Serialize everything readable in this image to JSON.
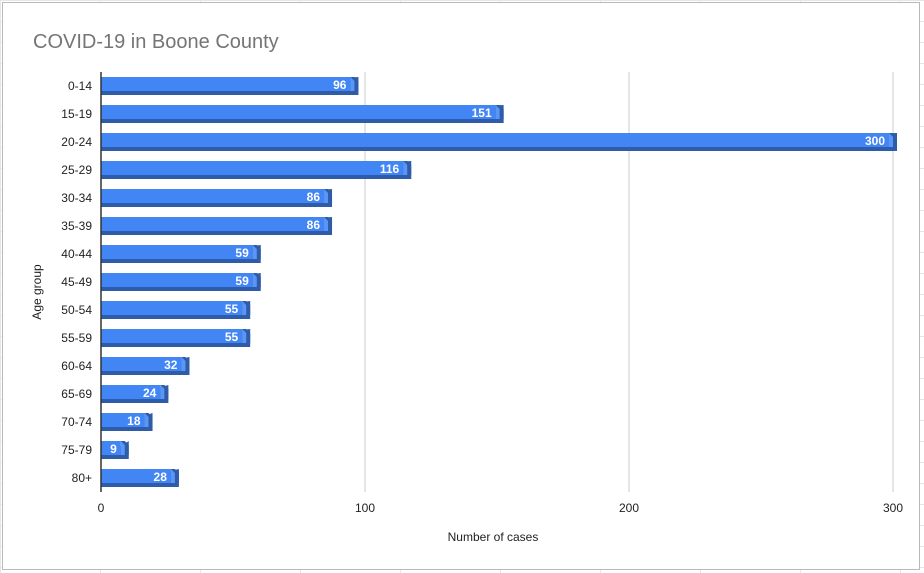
{
  "chart_data": {
    "type": "bar",
    "orientation": "horizontal",
    "title": "COVID-19 in Boone County",
    "xlabel": "Number of cases",
    "ylabel": "Age group",
    "xlim": [
      0,
      300
    ],
    "x_ticks": [
      "0",
      "100",
      "200",
      "300"
    ],
    "grid": true,
    "bar_color": "#4285f4",
    "bar_shadow_color": "#2f5ca8",
    "categories": [
      "0-14",
      "15-19",
      "20-24",
      "25-29",
      "30-34",
      "35-39",
      "40-44",
      "45-49",
      "50-54",
      "55-59",
      "60-64",
      "65-69",
      "70-74",
      "75-79",
      "80+"
    ],
    "values": [
      96,
      151,
      300,
      116,
      86,
      86,
      59,
      59,
      55,
      55,
      32,
      24,
      18,
      9,
      28
    ],
    "data_labels": [
      "96",
      "151",
      "300",
      "116",
      "86",
      "86",
      "59",
      "59",
      "55",
      "55",
      "32",
      "24",
      "18",
      "9",
      "28"
    ]
  }
}
